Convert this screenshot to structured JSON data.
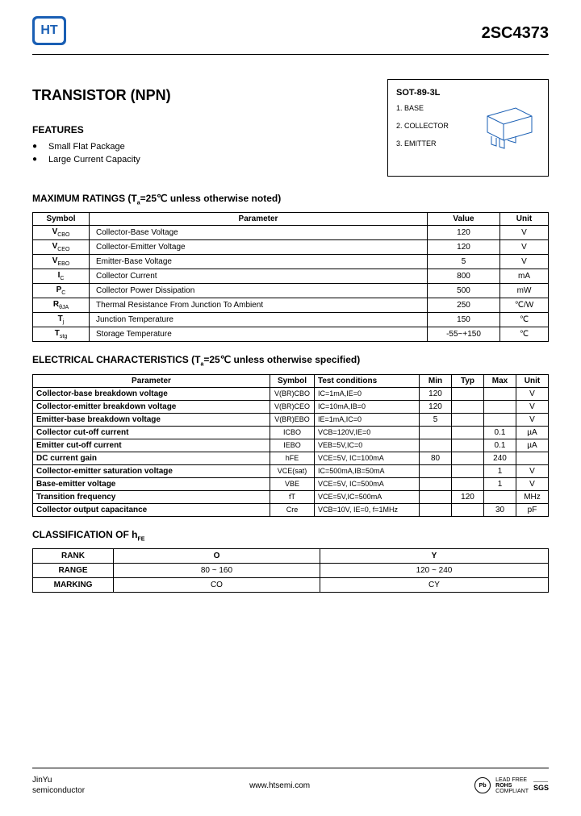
{
  "header": {
    "logo_text": "HT",
    "part_number": "2SC4373"
  },
  "title": "TRANSISTOR  (NPN)",
  "features": {
    "heading": "FEATURES",
    "items": [
      "Small Flat Package",
      "Large Current Capacity"
    ]
  },
  "package": {
    "title": "SOT-89-3L",
    "pins": [
      "1. BASE",
      "2. COLLECTOR",
      "3. EMITTER"
    ]
  },
  "ratings": {
    "heading": "MAXIMUM RATINGS (T",
    "heading_sub": "a",
    "heading_rest": "=25℃ unless otherwise noted)",
    "cols": [
      "Symbol",
      "Parameter",
      "Value",
      "Unit"
    ],
    "rows": [
      {
        "sym": "V",
        "sub": "CBO",
        "param": "Collector-Base Voltage",
        "val": "120",
        "unit": "V"
      },
      {
        "sym": "V",
        "sub": "CEO",
        "param": "Collector-Emitter Voltage",
        "val": "120",
        "unit": "V"
      },
      {
        "sym": "V",
        "sub": "EBO",
        "param": "Emitter-Base Voltage",
        "val": "5",
        "unit": "V"
      },
      {
        "sym": "I",
        "sub": "C",
        "param": "Collector Current",
        "val": "800",
        "unit": "mA"
      },
      {
        "sym": "P",
        "sub": "C",
        "param": "Collector Power Dissipation",
        "val": "500",
        "unit": "mW"
      },
      {
        "sym": "R",
        "sub": "θJA",
        "param": "Thermal Resistance From Junction To Ambient",
        "val": "250",
        "unit": "℃/W"
      },
      {
        "sym": "T",
        "sub": "j",
        "param": "Junction Temperature",
        "val": "150",
        "unit": "℃"
      },
      {
        "sym": "T",
        "sub": "stg",
        "param": "Storage Temperature",
        "val": "-55~+150",
        "unit": "℃"
      }
    ]
  },
  "electrical": {
    "heading": "ELECTRICAL CHARACTERISTICS (T",
    "heading_sub": "a",
    "heading_rest": "=25℃ unless otherwise specified)",
    "cols": [
      "Parameter",
      "Symbol",
      "Test    conditions",
      "Min",
      "Typ",
      "Max",
      "Unit"
    ],
    "rows": [
      {
        "param": "Collector-base breakdown voltage",
        "sym": "V(BR)CBO",
        "cond": "IC=1mA,IE=0",
        "min": "120",
        "typ": "",
        "max": "",
        "unit": "V"
      },
      {
        "param": "Collector-emitter breakdown voltage",
        "sym": "V(BR)CEO",
        "cond": "IC=10mA,IB=0",
        "min": "120",
        "typ": "",
        "max": "",
        "unit": "V"
      },
      {
        "param": "Emitter-base breakdown voltage",
        "sym": "V(BR)EBO",
        "cond": "IE=1mA,IC=0",
        "min": "5",
        "typ": "",
        "max": "",
        "unit": "V"
      },
      {
        "param": "Collector cut-off current",
        "sym": "ICBO",
        "cond": "VCB=120V,IE=0",
        "min": "",
        "typ": "",
        "max": "0.1",
        "unit": "µA"
      },
      {
        "param": "Emitter cut-off current",
        "sym": "IEBO",
        "cond": "VEB=5V,IC=0",
        "min": "",
        "typ": "",
        "max": "0.1",
        "unit": "µA"
      },
      {
        "param": "DC current gain",
        "sym": "hFE",
        "cond": "VCE=5V, IC=100mA",
        "min": "80",
        "typ": "",
        "max": "240",
        "unit": ""
      },
      {
        "param": "Collector-emitter saturation voltage",
        "sym": "VCE(sat)",
        "cond": "IC=500mA,IB=50mA",
        "min": "",
        "typ": "",
        "max": "1",
        "unit": "V"
      },
      {
        "param": "Base-emitter voltage",
        "sym": "VBE",
        "cond": "VCE=5V, IC=500mA",
        "min": "",
        "typ": "",
        "max": "1",
        "unit": "V"
      },
      {
        "param": "Transition frequency",
        "sym": "fT",
        "cond": "VCE=5V,IC=500mA",
        "min": "",
        "typ": "120",
        "max": "",
        "unit": "MHz"
      },
      {
        "param": "Collector output capacitance",
        "sym": "Cre",
        "cond": "VCB=10V, IE=0, f=1MHz",
        "min": "",
        "typ": "",
        "max": "30",
        "unit": "pF"
      }
    ]
  },
  "classification": {
    "heading": "CLASSIFICATION OF h",
    "heading_sub": "FE",
    "labels": [
      "RANK",
      "RANGE",
      "MARKING"
    ],
    "cols": [
      "O",
      "Y"
    ],
    "ranges": [
      "80 ~ 160",
      "120 ~ 240"
    ],
    "markings": [
      "CO",
      "CY"
    ]
  },
  "footer": {
    "company1": "JinYu",
    "company2": "semiconductor",
    "url": "www.htsemi.com",
    "badge": "Pb",
    "compliance1": "LEAD FREE",
    "compliance2": "ROHS",
    "compliance3": "COMPLIANT",
    "sgs": "SGS"
  }
}
